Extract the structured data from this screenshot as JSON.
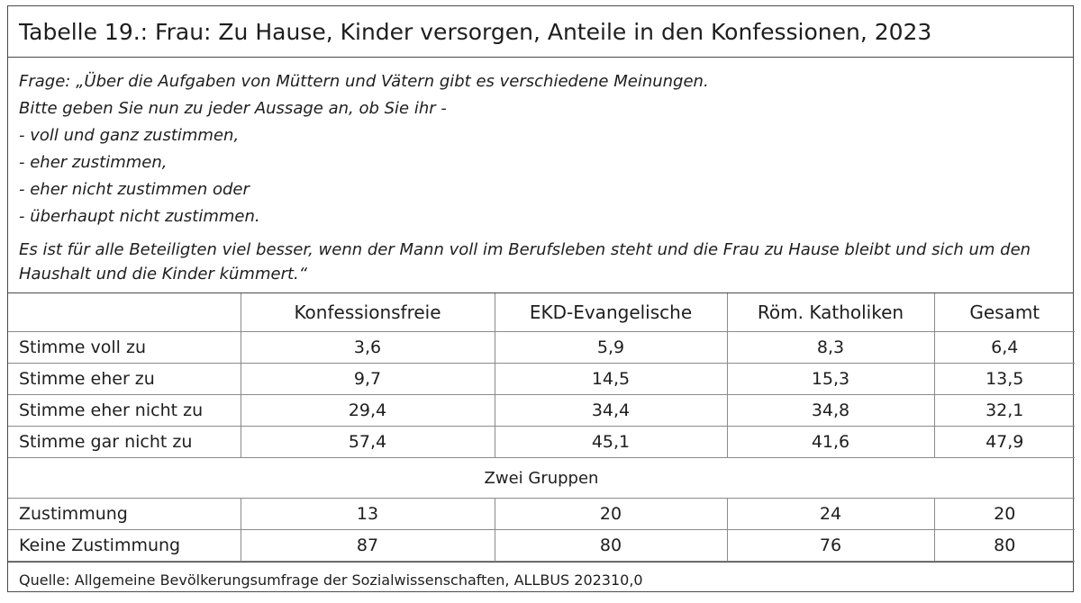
{
  "title": "Tabelle 19.: Frau: Zu Hause, Kinder versorgen, Anteile in den Konfessionen, 2023",
  "question": {
    "lines": [
      "Frage: „Über die Aufgaben von Müttern und Vätern gibt es verschiedene Meinungen.",
      "Bitte geben Sie nun zu jeder Aussage an, ob Sie ihr -",
      "- voll und ganz zustimmen,",
      "- eher zustimmen,",
      "- eher nicht zustimmen oder",
      "- überhaupt nicht zustimmen."
    ],
    "statement": "Es ist für alle Beteiligten viel besser, wenn der Mann voll im Berufsleben steht und die Frau zu Hause bleibt und sich um den Haushalt und die Kinder kümmert.“"
  },
  "table": {
    "columns": [
      "",
      "Konfessionsfreie",
      "EKD-Evangelische",
      "Röm. Katholiken",
      "Gesamt"
    ],
    "rows": [
      {
        "label": "Stimme voll zu",
        "values": [
          "3,6",
          "5,9",
          "8,3",
          "6,4"
        ]
      },
      {
        "label": "Stimme eher zu",
        "values": [
          "9,7",
          "14,5",
          "15,3",
          "13,5"
        ]
      },
      {
        "label": "Stimme eher nicht zu",
        "values": [
          "29,4",
          "34,4",
          "34,8",
          "32,1"
        ]
      },
      {
        "label": "Stimme gar nicht zu",
        "values": [
          "57,4",
          "45,1",
          "41,6",
          "47,9"
        ]
      }
    ],
    "group_heading": "Zwei Gruppen",
    "group_rows": [
      {
        "label": "Zustimmung",
        "values": [
          "13",
          "20",
          "24",
          "20"
        ]
      },
      {
        "label": "Keine Zustimmung",
        "values": [
          "87",
          "80",
          "76",
          "80"
        ]
      }
    ]
  },
  "source": "Quelle: Allgemeine Bevölkerungsumfrage der Sozialwissenschaften, ALLBUS 202310,0"
}
